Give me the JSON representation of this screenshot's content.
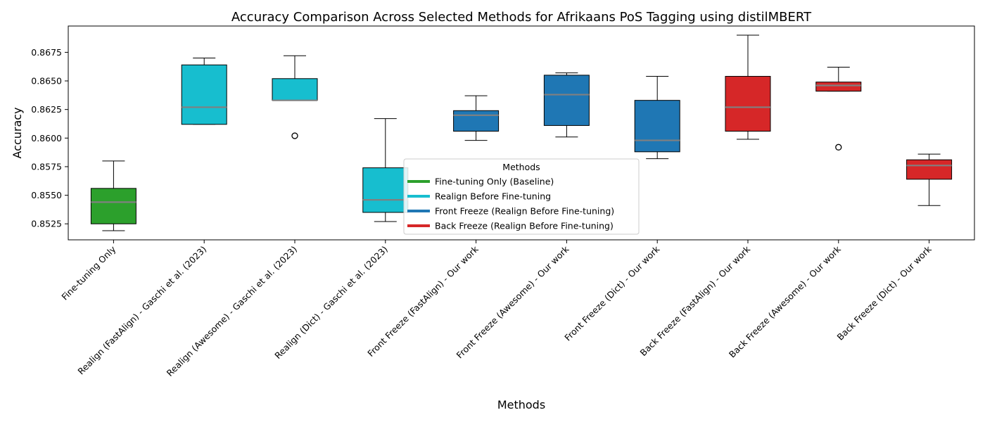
{
  "chart_data": {
    "type": "box",
    "title": "Accuracy Comparison Across Selected Methods for Afrikaans PoS Tagging using distilMBERT",
    "xlabel": "Methods",
    "ylabel": "Accuracy",
    "ylim": [
      0.8511,
      0.8698
    ],
    "yticks": [
      "0.8525",
      "0.8550",
      "0.8575",
      "0.8600",
      "0.8625",
      "0.8650",
      "0.8675"
    ],
    "categories": [
      "Fine-tuning Only",
      "Realign (FastAlign) - Gaschi et al. (2023)",
      "Realign (Awesome) - Gaschi et al. (2023)",
      "Realign (Dict) - Gaschi et al. (2023)",
      "Front Freeze (FastAlign) - Our work",
      "Front Freeze (Awesome) - Our work",
      "Front Freeze (Dict) - Our work",
      "Back Freeze (FastAlign) - Our work",
      "Back Freeze (Awesome) - Our work",
      "Back Freeze (Dict) - Our work"
    ],
    "boxes": [
      {
        "group": 0,
        "whislo": 0.8519,
        "q1": 0.8525,
        "med": 0.8544,
        "q3": 0.8556,
        "whishi": 0.858,
        "fliers": []
      },
      {
        "group": 1,
        "whislo": 0.8612,
        "q1": 0.8612,
        "med": 0.8627,
        "q3": 0.8664,
        "whishi": 0.867,
        "fliers": []
      },
      {
        "group": 1,
        "whislo": 0.8633,
        "q1": 0.8633,
        "med": 0.8633,
        "q3": 0.8652,
        "whishi": 0.8672,
        "fliers": [
          0.8602
        ]
      },
      {
        "group": 1,
        "whislo": 0.8527,
        "q1": 0.8535,
        "med": 0.8546,
        "q3": 0.8574,
        "whishi": 0.8617,
        "fliers": []
      },
      {
        "group": 2,
        "whislo": 0.8598,
        "q1": 0.8606,
        "med": 0.862,
        "q3": 0.8624,
        "whishi": 0.8637,
        "fliers": []
      },
      {
        "group": 2,
        "whislo": 0.8601,
        "q1": 0.8611,
        "med": 0.8638,
        "q3": 0.8655,
        "whishi": 0.8657,
        "fliers": []
      },
      {
        "group": 2,
        "whislo": 0.8582,
        "q1": 0.8588,
        "med": 0.8598,
        "q3": 0.8633,
        "whishi": 0.8654,
        "fliers": []
      },
      {
        "group": 3,
        "whislo": 0.8599,
        "q1": 0.8606,
        "med": 0.8627,
        "q3": 0.8654,
        "whishi": 0.869,
        "fliers": []
      },
      {
        "group": 3,
        "whislo": 0.8641,
        "q1": 0.8641,
        "med": 0.8646,
        "q3": 0.8649,
        "whishi": 0.8662,
        "fliers": [
          0.8592
        ]
      },
      {
        "group": 3,
        "whislo": 0.8541,
        "q1": 0.8564,
        "med": 0.8576,
        "q3": 0.8581,
        "whishi": 0.8586,
        "fliers": []
      }
    ],
    "legend": {
      "title": "Methods",
      "placement": "center",
      "entries": [
        {
          "label": "Fine-tuning Only (Baseline)",
          "color": "#2ca02c"
        },
        {
          "label": "Realign Before Fine-tuning",
          "color": "#17becf"
        },
        {
          "label": "Front Freeze (Realign Before Fine-tuning)",
          "color": "#1f77b4"
        },
        {
          "label": "Back Freeze (Realign Before Fine-tuning)",
          "color": "#d62728"
        }
      ]
    },
    "median_color": "#808080",
    "grid": false
  }
}
